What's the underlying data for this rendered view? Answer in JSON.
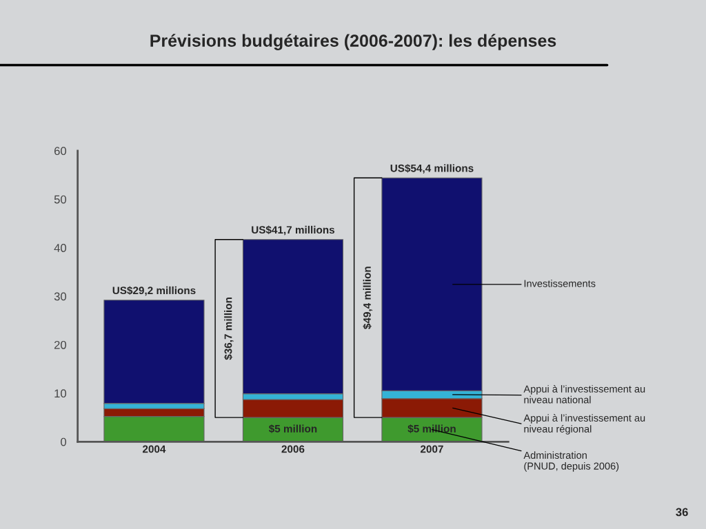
{
  "chart_data": {
    "type": "bar",
    "stacked": true,
    "title": "Prévisions budgétaires (2006-2007): les dépenses",
    "categories": [
      "2004",
      "2006",
      "2007"
    ],
    "series": [
      {
        "name": "Administration\n(PNUD, depuis 2006)",
        "color": "#3f9a2e",
        "values": [
          5.2,
          5,
          5
        ],
        "value_labels": [
          null,
          "$5 million",
          "$5 million"
        ]
      },
      {
        "name": "Appui à l’investissement au\nniveau régional",
        "color": "#8b1a05",
        "values": [
          1.6,
          3.7,
          3.9
        ]
      },
      {
        "name": "Appui à l’investissement au\nniveau national",
        "color": "#34b3d6",
        "values": [
          1.1,
          1.2,
          1.6
        ]
      },
      {
        "name": "Investissements",
        "color": "#10106f",
        "values": [
          21.3,
          31.8,
          43.9
        ]
      }
    ],
    "totals": [
      "US$29,2 millions",
      "US$41,7 millions",
      "US$54,4 millions"
    ],
    "ylim": [
      0,
      60
    ],
    "yticks": [
      0,
      10,
      20,
      30,
      40,
      50,
      60
    ],
    "grid": false,
    "legend": false,
    "annotations": [
      "$36,7 million",
      "$49,4 million",
      "36"
    ]
  }
}
